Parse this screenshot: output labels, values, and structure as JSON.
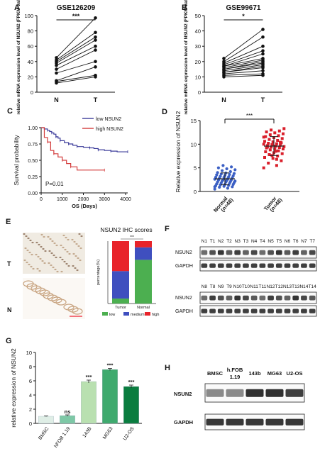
{
  "panels": {
    "A": {
      "letter": "A",
      "title": "GSE126209",
      "ylabel": "relative mRNA expression level of NSUN2 (FPKM value)",
      "sig": "***",
      "xcats": [
        "N",
        "T"
      ],
      "ylim": [
        0,
        100
      ],
      "yticks": [
        "0",
        "20",
        "40",
        "60",
        "80",
        "100"
      ]
    },
    "B": {
      "letter": "B",
      "title": "GSE99671",
      "ylabel": "relative mRNA expression level of NSUN2 (FPKM value)",
      "sig": "*",
      "xcats": [
        "N",
        "T"
      ],
      "ylim": [
        0,
        50
      ],
      "yticks": [
        "0",
        "10",
        "20",
        "30",
        "40",
        "50"
      ]
    },
    "C": {
      "letter": "C",
      "ylabel": "Survival probability",
      "xlabel": "OS (Days)",
      "legend": [
        "low NSUN2",
        "high NSUN2"
      ],
      "pvalue": "P=0.01",
      "xticks": [
        "0",
        "1000",
        "2000",
        "3000",
        "4000"
      ],
      "yticks": [
        "0.00",
        "0.25",
        "0.50",
        "0.75",
        "1.00"
      ],
      "colors": {
        "low": "#3b3b9a",
        "high": "#d33b3b"
      }
    },
    "D": {
      "letter": "D",
      "ylabel": "Relative expression of NSUN2",
      "sig": "***",
      "xcats": [
        "Normal (n=48)",
        "Tumor (n=48)"
      ],
      "yticks": [
        "0",
        "5",
        "10",
        "15"
      ],
      "colors": {
        "normal": "#3b5fc4",
        "tumor": "#d91f2b"
      }
    },
    "E": {
      "letter": "E",
      "title": "NSUN2 IHC scores",
      "row_labels": [
        "T",
        "N"
      ],
      "ylabel": "percentage(%)",
      "sig": "***",
      "xcats": [
        "Tumor",
        "Normal"
      ],
      "legend": [
        "low",
        "medium",
        "high"
      ],
      "colors": {
        "low": "#4caf50",
        "medium": "#3f4fbf",
        "high": "#e8232a"
      }
    },
    "F": {
      "letter": "F",
      "blot1_lanes": [
        "N1",
        "T1",
        "N2",
        "T2",
        "N3",
        "T3",
        "N4",
        "T4",
        "N5",
        "T5",
        "N6",
        "T6",
        "N7",
        "T7"
      ],
      "blot2_lanes": [
        "N8",
        "T8",
        "N9",
        "T9",
        "N10",
        "T10",
        "N11",
        "T11",
        "N12",
        "T12",
        "N13",
        "T13",
        "N14",
        "T14"
      ],
      "rows": [
        "NSUN2",
        "GAPDH"
      ]
    },
    "G": {
      "letter": "G",
      "ylabel": "relative expression of NSUN2",
      "yticks": [
        "0",
        "2",
        "4",
        "6",
        "8",
        "10"
      ],
      "categories": [
        "BMSC",
        "hFOB 1.19",
        "143B",
        "MG63",
        "U2-OS"
      ],
      "sigs": [
        "",
        "ns",
        "***",
        "***",
        "***"
      ],
      "colors": [
        "#dfeee6",
        "#7ec8a6",
        "#b9e0b0",
        "#3faa6e",
        "#0a7d3f"
      ]
    },
    "H": {
      "letter": "H",
      "lanes": [
        "BMSC",
        "h.FOB 1.19",
        "143b",
        "MG63",
        "U2-OS"
      ],
      "rows": [
        "NSUN2",
        "GAPDH"
      ]
    }
  },
  "chart_data": [
    {
      "panel": "A",
      "type": "scatter",
      "title": "GSE126209",
      "xlabel": "",
      "ylabel": "relative mRNA expression level of NSUN2 (FPKM value)",
      "categories": [
        "N",
        "T"
      ],
      "ylim": [
        0,
        100
      ],
      "pairs": [
        [
          45,
          97
        ],
        [
          42,
          78
        ],
        [
          40,
          72
        ],
        [
          38,
          68
        ],
        [
          35,
          60
        ],
        [
          30,
          55
        ],
        [
          25,
          40
        ],
        [
          15,
          33
        ],
        [
          14,
          22
        ],
        [
          12,
          20
        ]
      ]
    },
    {
      "panel": "B",
      "type": "scatter",
      "title": "GSE99671",
      "xlabel": "",
      "ylabel": "relative mRNA expression level of NSUN2 (FPKM value)",
      "categories": [
        "N",
        "T"
      ],
      "ylim": [
        0,
        50
      ],
      "pairs": [
        [
          22,
          41
        ],
        [
          20,
          36
        ],
        [
          19,
          30
        ],
        [
          18,
          27
        ],
        [
          17,
          25
        ],
        [
          17,
          22
        ],
        [
          16,
          21
        ],
        [
          15,
          20
        ],
        [
          15,
          19
        ],
        [
          14,
          18
        ],
        [
          13,
          17
        ],
        [
          13,
          16
        ],
        [
          12,
          14
        ],
        [
          11,
          12
        ],
        [
          10,
          11
        ]
      ]
    },
    {
      "panel": "C",
      "type": "line",
      "xlabel": "OS (Days)",
      "ylabel": "Survival probability",
      "xlim": [
        0,
        4100
      ],
      "ylim": [
        0,
        1
      ],
      "series": [
        {
          "name": "low NSUN2",
          "x": [
            0,
            150,
            300,
            400,
            500,
            600,
            700,
            800,
            900,
            1100,
            1300,
            1500,
            1700,
            2000,
            2300,
            2500,
            2700,
            3000,
            3300,
            3600,
            4100
          ],
          "y": [
            1.0,
            0.98,
            0.96,
            0.94,
            0.92,
            0.9,
            0.86,
            0.84,
            0.8,
            0.77,
            0.75,
            0.73,
            0.71,
            0.7,
            0.69,
            0.68,
            0.66,
            0.65,
            0.64,
            0.63,
            0.63
          ]
        },
        {
          "name": "high NSUN2",
          "x": [
            0,
            150,
            300,
            450,
            600,
            800,
            1000,
            1200,
            1400,
            1700,
            3000
          ],
          "y": [
            1.0,
            0.85,
            0.78,
            0.65,
            0.6,
            0.55,
            0.5,
            0.45,
            0.4,
            0.35,
            0.35
          ]
        }
      ]
    },
    {
      "panel": "D",
      "type": "scatter",
      "ylabel": "Relative expression of NSUN2",
      "categories": [
        "Normal (n=48)",
        "Tumor (n=48)"
      ],
      "ylim": [
        0,
        15
      ],
      "normal": [
        0.5,
        0.7,
        0.9,
        1.0,
        1.1,
        1.2,
        1.3,
        1.4,
        1.5,
        1.5,
        1.6,
        1.7,
        1.8,
        1.9,
        2.0,
        2.0,
        2.1,
        2.2,
        2.2,
        2.3,
        2.4,
        2.5,
        2.5,
        2.6,
        2.7,
        2.8,
        2.9,
        3.0,
        3.0,
        3.1,
        3.2,
        3.3,
        3.4,
        3.5,
        3.6,
        3.7,
        3.8,
        3.9,
        4.0,
        4.2,
        4.4,
        4.6,
        4.8,
        5.0,
        5.2,
        5.5,
        1.0,
        2.6
      ],
      "tumor": [
        5.0,
        5.5,
        6.0,
        6.5,
        7.0,
        7.2,
        7.5,
        7.8,
        8.0,
        8.2,
        8.4,
        8.6,
        8.8,
        9.0,
        9.0,
        9.2,
        9.3,
        9.4,
        9.5,
        9.6,
        9.7,
        9.8,
        9.9,
        10.0,
        10.1,
        10.2,
        10.3,
        10.5,
        10.6,
        10.8,
        11.0,
        11.2,
        11.4,
        11.6,
        11.8,
        12.0,
        12.2,
        12.4,
        12.6,
        12.8,
        13.0,
        13.3,
        8.5,
        9.4,
        10.4,
        7.6,
        11.5,
        6.8
      ]
    },
    {
      "panel": "E",
      "type": "bar",
      "ylabel": "percentage(%)",
      "categories": [
        "Tumor",
        "Normal"
      ],
      "ylim": [
        0,
        100
      ],
      "series": [
        {
          "name": "low",
          "values": [
            8,
            70
          ]
        },
        {
          "name": "medium",
          "values": [
            44,
            20
          ]
        },
        {
          "name": "high",
          "values": [
            48,
            10
          ]
        }
      ]
    },
    {
      "panel": "G",
      "type": "bar",
      "ylabel": "relative expression of NSUN2",
      "categories": [
        "BMSC",
        "hFOB 1.19",
        "143B",
        "MG63",
        "U2-OS"
      ],
      "values": [
        1.0,
        1.1,
        5.9,
        7.6,
        5.2
      ],
      "errors": [
        0.05,
        0.1,
        0.2,
        0.15,
        0.2
      ],
      "ylim": [
        0,
        10
      ]
    }
  ]
}
